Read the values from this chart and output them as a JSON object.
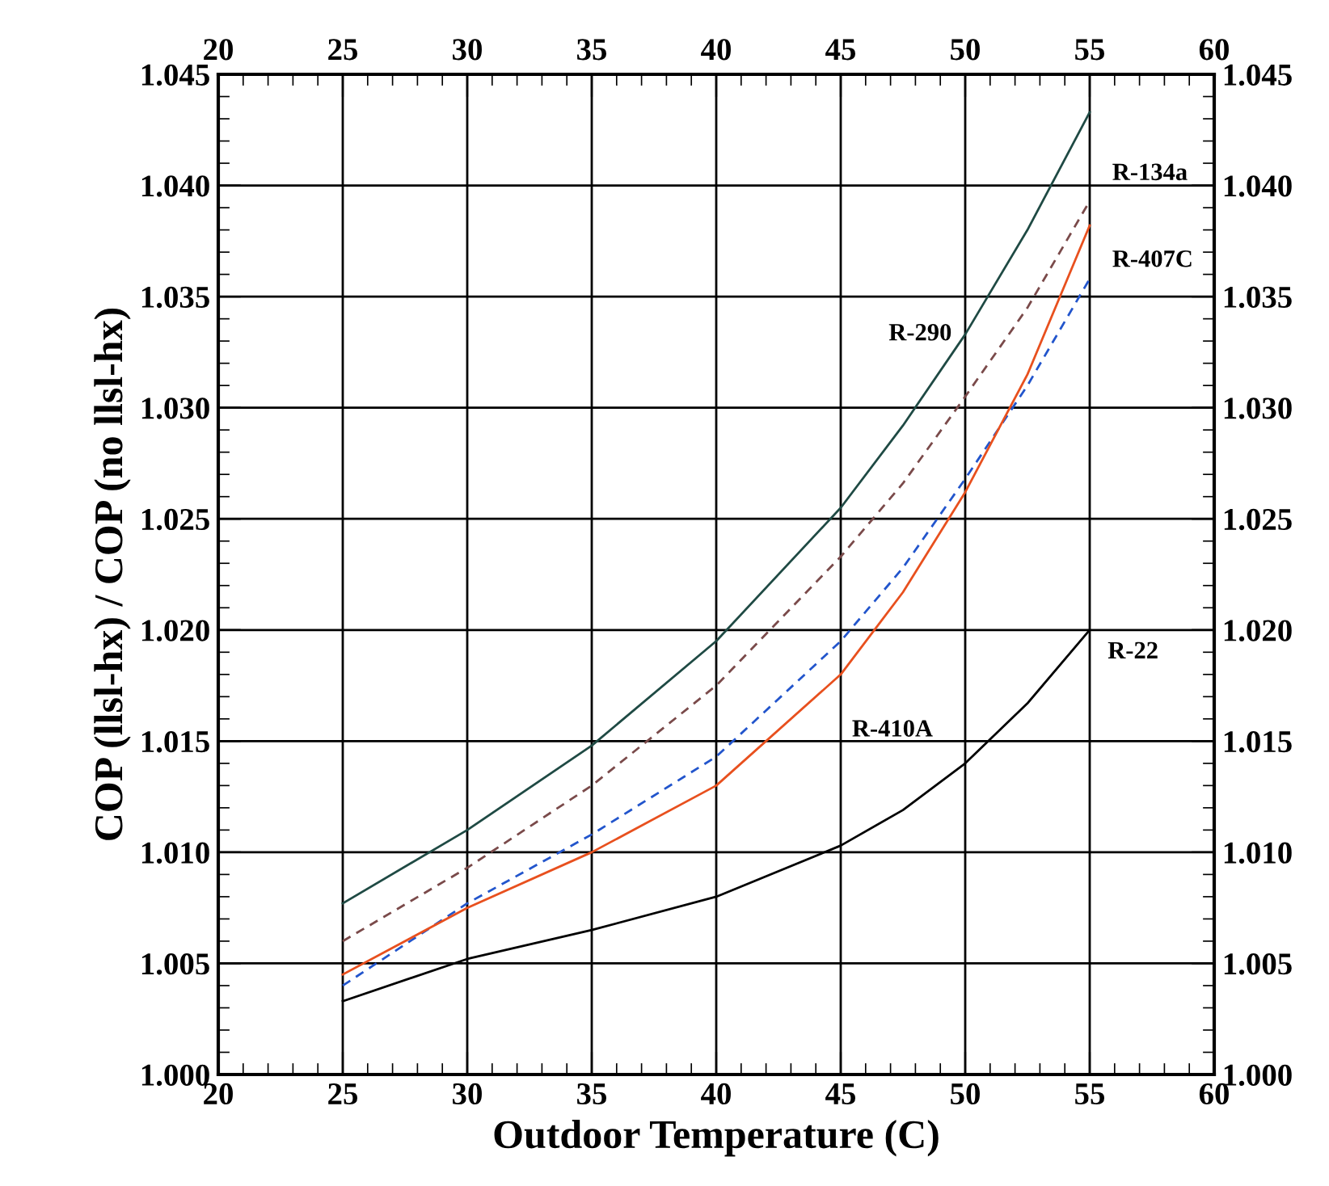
{
  "chart_data": {
    "type": "line",
    "xlabel": "Outdoor Temperature (C)",
    "ylabel": "COP (llsl-hx) / COP (no llsl-hx)",
    "x": [
      25,
      30,
      35,
      40,
      45,
      47.5,
      50,
      52.5,
      55
    ],
    "series": [
      {
        "name": "R-290",
        "color": "#1f4a44",
        "line_style": "solid",
        "values": [
          1.0077,
          1.011,
          1.0148,
          1.0195,
          1.0255,
          1.0292,
          1.0333,
          1.038,
          1.0433
        ]
      },
      {
        "name": "R-134a",
        "color": "#7a4a4a",
        "line_style": "dashed",
        "values": [
          1.006,
          1.0093,
          1.013,
          1.0175,
          1.0233,
          1.0266,
          1.0305,
          1.0345,
          1.0393
        ]
      },
      {
        "name": "R-407C",
        "color": "#2255cc",
        "line_style": "dashed",
        "values": [
          1.004,
          1.0077,
          1.0108,
          1.0143,
          1.0195,
          1.0228,
          1.0268,
          1.031,
          1.0358
        ]
      },
      {
        "name": "R-410A",
        "color": "#e8501e",
        "line_style": "solid",
        "values": [
          1.0045,
          1.0075,
          1.01,
          1.013,
          1.018,
          1.0217,
          1.0262,
          1.0315,
          1.0382
        ]
      },
      {
        "name": "R-22",
        "color": "#000000",
        "line_style": "solid",
        "values": [
          1.0033,
          1.0052,
          1.0065,
          1.008,
          1.0103,
          1.0119,
          1.014,
          1.0167,
          1.02
        ]
      }
    ],
    "xlim": [
      20,
      60
    ],
    "xticks": [
      20,
      25,
      30,
      35,
      40,
      45,
      50,
      55,
      60
    ],
    "x2lim": [
      20,
      60
    ],
    "x2ticks": [
      20,
      25,
      30,
      35,
      40,
      45,
      50,
      55,
      60
    ],
    "ylim": [
      1.0,
      1.045
    ],
    "yticks": [
      {
        "value": 1.0,
        "label": "1.000"
      },
      {
        "value": 1.005,
        "label": "1.005"
      },
      {
        "value": 1.01,
        "label": "1.010"
      },
      {
        "value": 1.015,
        "label": "1.015"
      },
      {
        "value": 1.02,
        "label": "1.020"
      },
      {
        "value": 1.025,
        "label": "1.025"
      },
      {
        "value": 1.03,
        "label": "1.030"
      },
      {
        "value": 1.035,
        "label": "1.035"
      },
      {
        "value": 1.04,
        "label": "1.040"
      },
      {
        "value": 1.045,
        "label": "1.045"
      }
    ],
    "y2lim": [
      1.0,
      1.045
    ],
    "y2ticks": [
      {
        "value": 1.0,
        "label": "1.000"
      },
      {
        "value": 1.005,
        "label": "1.005"
      },
      {
        "value": 1.01,
        "label": "1.010"
      },
      {
        "value": 1.015,
        "label": "1.015"
      },
      {
        "value": 1.02,
        "label": "1.020"
      },
      {
        "value": 1.025,
        "label": "1.025"
      },
      {
        "value": 1.03,
        "label": "1.030"
      },
      {
        "value": 1.035,
        "label": "1.035"
      },
      {
        "value": 1.04,
        "label": "1.040"
      },
      {
        "value": 1.045,
        "label": "1.045"
      }
    ],
    "grid": true,
    "legend": false,
    "marker": "none"
  }
}
